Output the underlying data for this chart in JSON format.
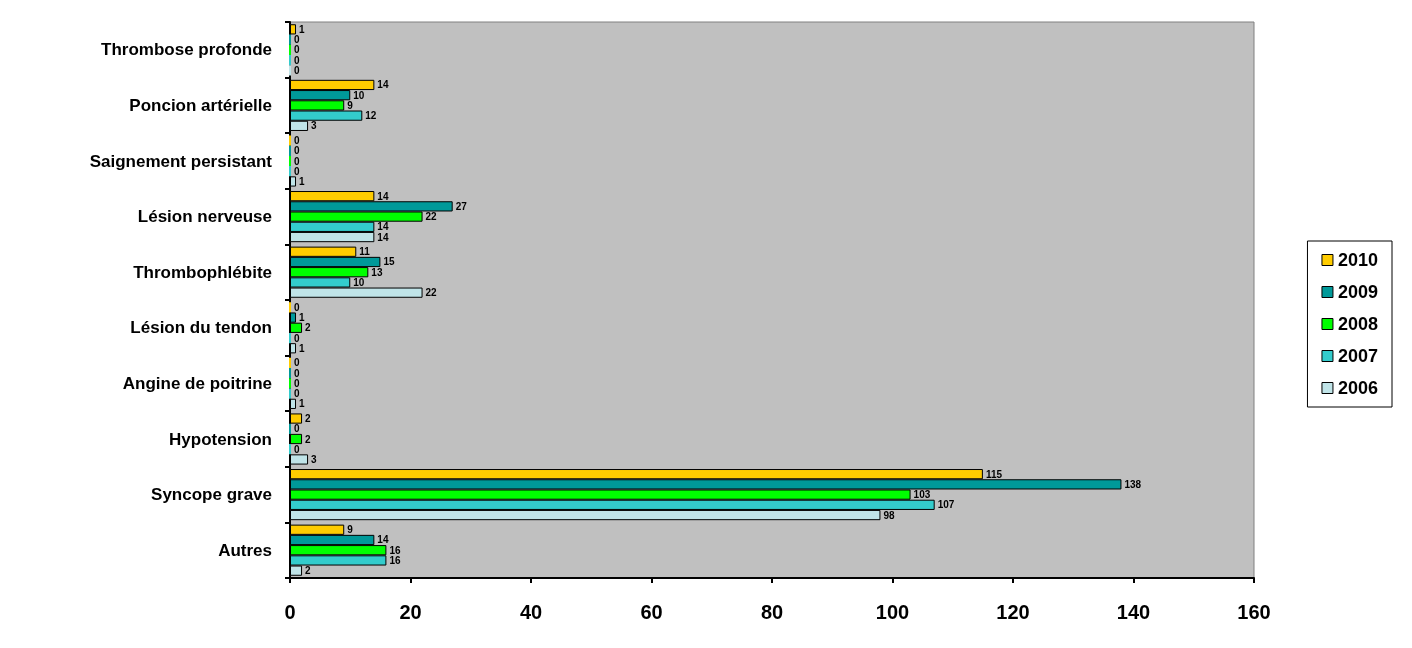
{
  "chart_data": {
    "type": "bar",
    "orientation": "horizontal",
    "categories": [
      "Thrombose profonde",
      "Poncion artérielle",
      "Saignement persistant",
      "Lésion nerveuse",
      "Thrombophlébite",
      "Lésion du tendon",
      "Angine de poitrine",
      "Hypotension",
      "Syncope grave",
      "Autres"
    ],
    "series": [
      {
        "name": "2010",
        "color": "#ffcc00",
        "values": [
          1,
          14,
          0,
          14,
          11,
          0,
          0,
          2,
          115,
          9
        ]
      },
      {
        "name": "2009",
        "color": "#009999",
        "values": [
          0,
          10,
          0,
          27,
          15,
          1,
          0,
          0,
          138,
          14
        ]
      },
      {
        "name": "2008",
        "color": "#00ff00",
        "values": [
          0,
          9,
          0,
          22,
          13,
          2,
          0,
          2,
          103,
          16
        ]
      },
      {
        "name": "2007",
        "color": "#33cccc",
        "values": [
          0,
          12,
          0,
          14,
          10,
          0,
          0,
          0,
          107,
          16
        ]
      },
      {
        "name": "2006",
        "color": "#c0e4e8",
        "values": [
          0,
          3,
          1,
          14,
          22,
          1,
          1,
          3,
          98,
          2
        ]
      }
    ],
    "xlim": [
      0,
      160
    ],
    "xticks": [
      0,
      20,
      40,
      60,
      80,
      100,
      120,
      140,
      160
    ],
    "grid": false,
    "legend": "right",
    "data_labels": true
  }
}
